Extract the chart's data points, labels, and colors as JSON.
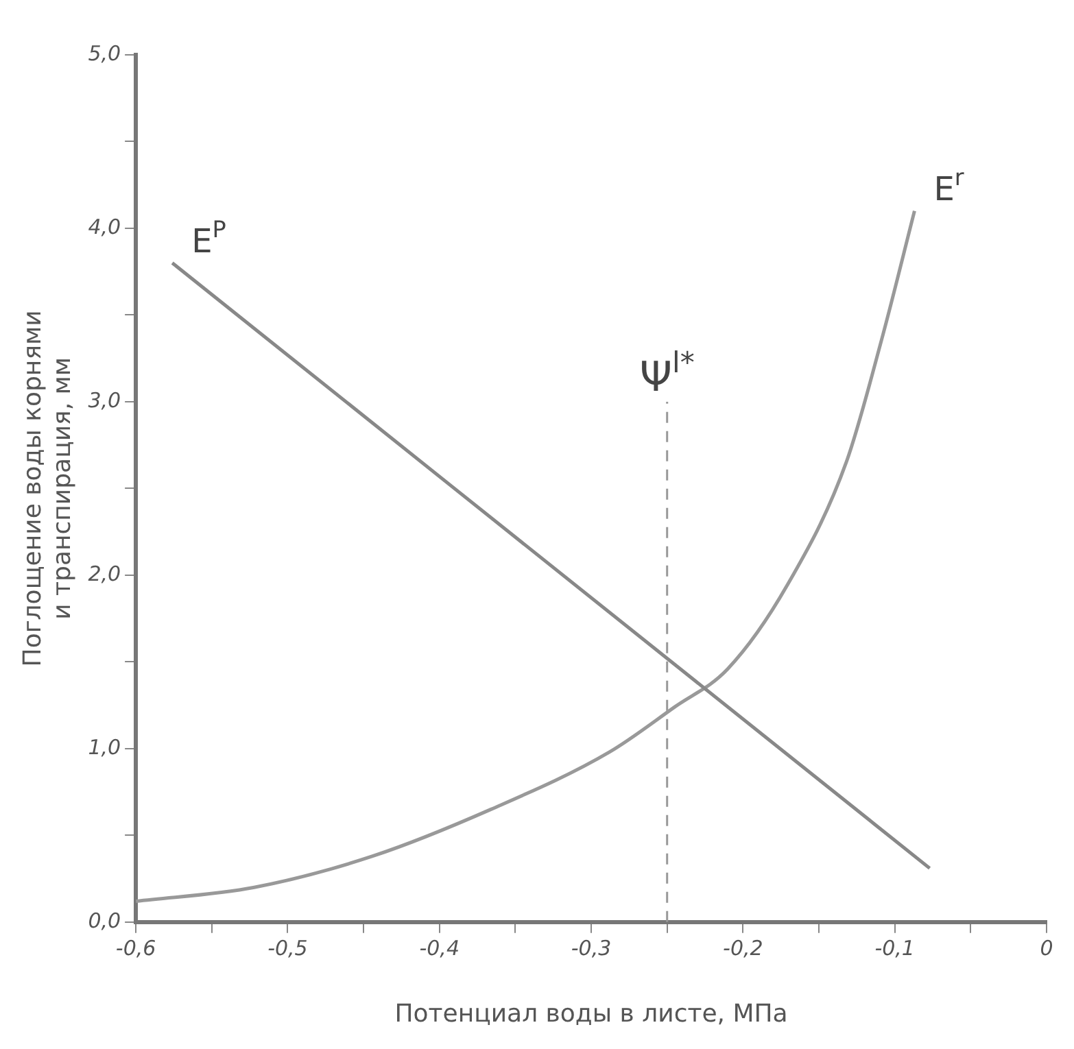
{
  "chart_data": {
    "type": "line",
    "xlabel": "Потенциал воды в листе, МПа",
    "ylabel": "Поглощение воды корнями\nи транспирация, мм",
    "xlim": [
      -0.6,
      0
    ],
    "ylim": [
      0,
      5
    ],
    "xticks": [
      {
        "value": -0.6,
        "label": "-0,6"
      },
      {
        "value": -0.55,
        "label": null
      },
      {
        "value": -0.5,
        "label": "-0,5"
      },
      {
        "value": -0.45,
        "label": null
      },
      {
        "value": -0.4,
        "label": "-0,4"
      },
      {
        "value": -0.35,
        "label": null
      },
      {
        "value": -0.3,
        "label": "-0,3"
      },
      {
        "value": -0.25,
        "label": null
      },
      {
        "value": -0.2,
        "label": "-0,2"
      },
      {
        "value": -0.15,
        "label": null
      },
      {
        "value": -0.1,
        "label": "-0,1"
      },
      {
        "value": -0.05,
        "label": null
      },
      {
        "value": 0,
        "label": "0"
      }
    ],
    "yticks": [
      {
        "value": 0,
        "label": "0,0"
      },
      {
        "value": 0.5,
        "label": null
      },
      {
        "value": 1,
        "label": "1,0"
      },
      {
        "value": 1.5,
        "label": null
      },
      {
        "value": 2,
        "label": "2,0"
      },
      {
        "value": 2.5,
        "label": null
      },
      {
        "value": 3,
        "label": "3,0"
      },
      {
        "value": 3.5,
        "label": null
      },
      {
        "value": 4,
        "label": "4,0"
      },
      {
        "value": 4.5,
        "label": null
      },
      {
        "value": 5,
        "label": "5,0"
      }
    ],
    "grid": false,
    "legend": false,
    "marker": "none",
    "line_style": "solid",
    "series": [
      {
        "name": "E$^{P}$",
        "color": "#888888",
        "x": [
          -0.576,
          -0.077
        ],
        "values": [
          3.8,
          0.31
        ]
      },
      {
        "name": "E$^{r}$",
        "color": "#999999",
        "x": [
          -0.6,
          -0.522,
          -0.444,
          -0.366,
          -0.288,
          -0.245,
          -0.21,
          -0.171,
          -0.132,
          -0.108,
          -0.087
        ],
        "values": [
          0.12,
          0.2,
          0.38,
          0.65,
          0.98,
          1.24,
          1.46,
          1.94,
          2.65,
          3.38,
          4.1
        ]
      }
    ],
    "ref_lines": [
      {
        "axis": "x",
        "value": -0.25,
        "label": "Ψ$^{l*}$",
        "line_style": "dashed",
        "color": "#999999"
      }
    ]
  }
}
